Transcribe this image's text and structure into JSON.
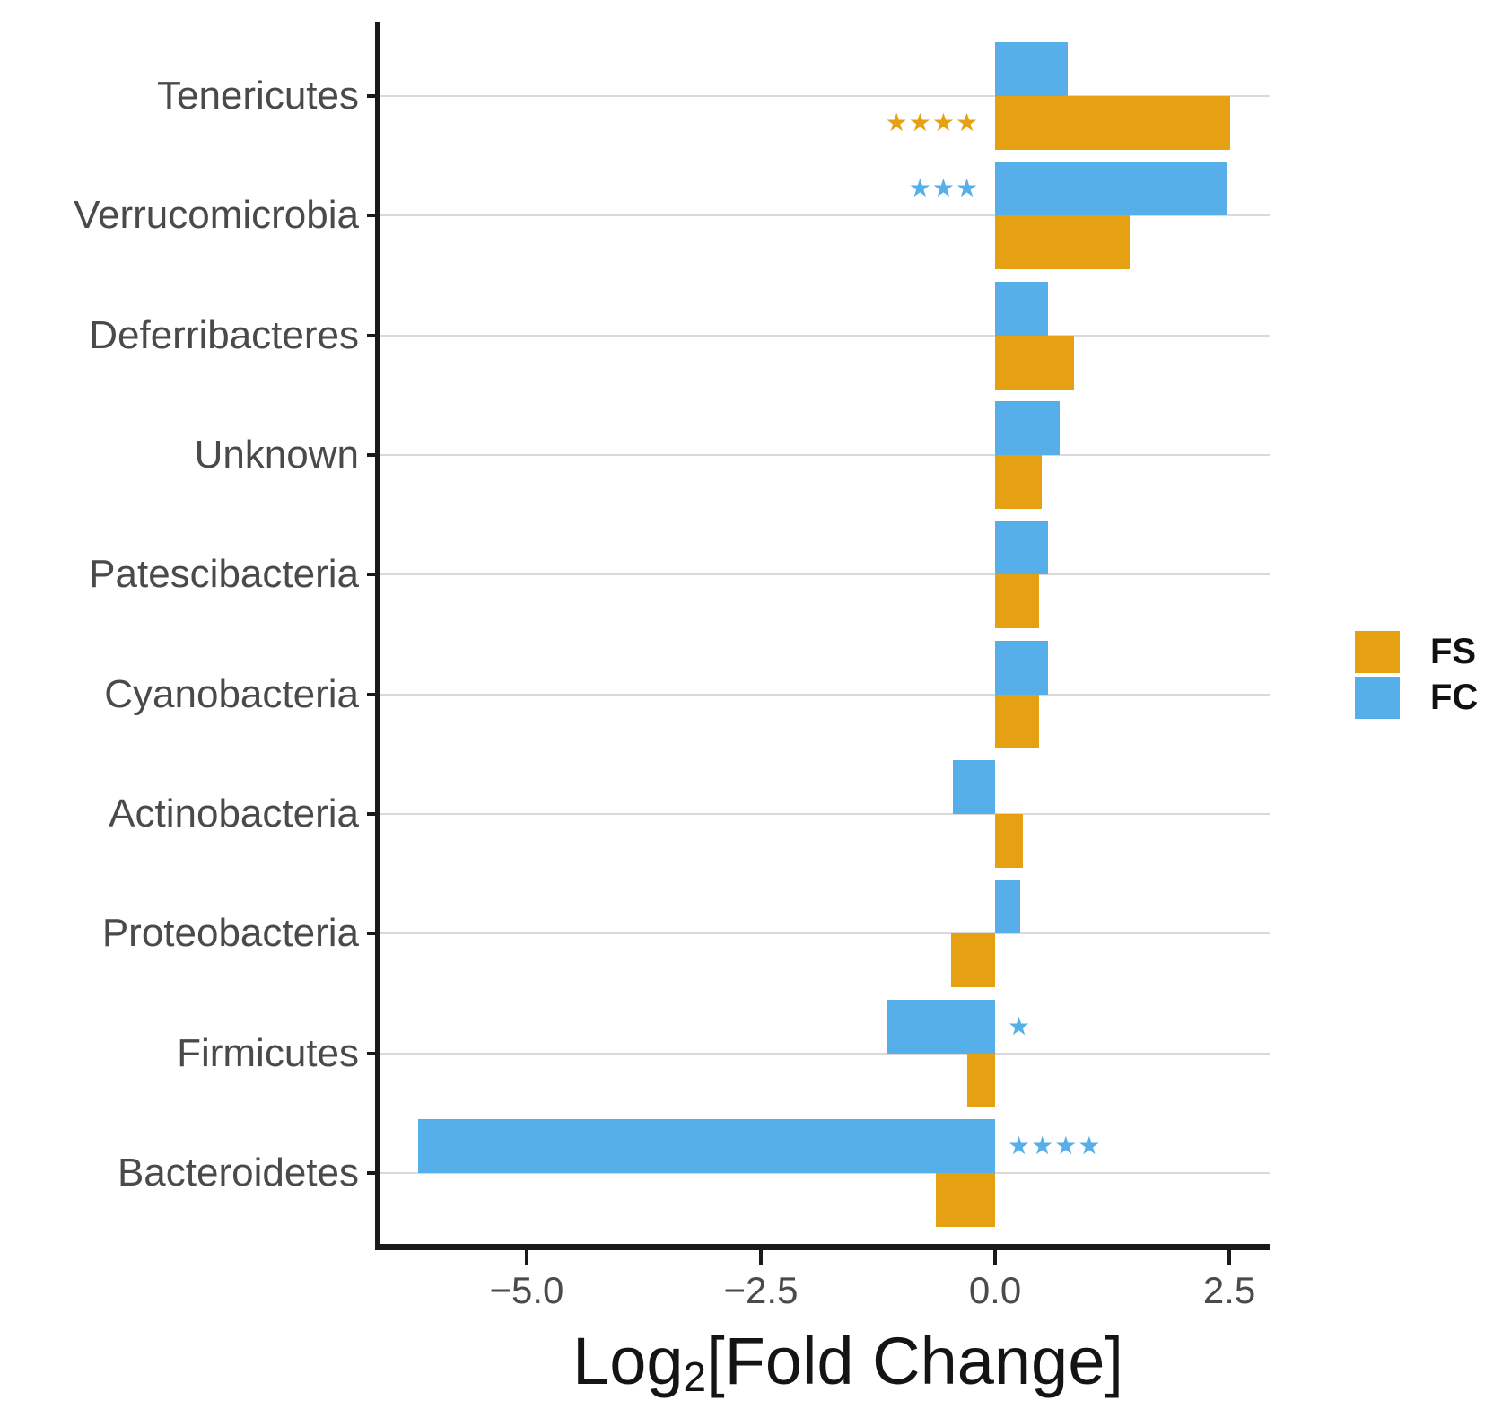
{
  "figure": {
    "background": "#ffffff"
  },
  "chart_data": {
    "type": "bar",
    "orientation": "horizontal",
    "title": "",
    "xlabel_parts": {
      "prefix": "Log",
      "sub": "2",
      "suffix": "[Fold Change]"
    },
    "xlabel_plain": "Log2[Fold Change]",
    "categories": [
      "Tenericutes",
      "Verrucomicrobia",
      "Deferribacteres",
      "Unknown",
      "Patescibacteria",
      "Cyanobacteria",
      "Actinobacteria",
      "Proteobacteria",
      "Firmicutes",
      "Bacteroidetes"
    ],
    "series": [
      {
        "name": "FS",
        "color": "#E6A112",
        "position": "below",
        "values": [
          2.51,
          1.44,
          0.84,
          0.5,
          0.47,
          0.47,
          0.3,
          -0.47,
          -0.3,
          -0.63
        ]
      },
      {
        "name": "FC",
        "color": "#56AFE8",
        "position": "above",
        "values": [
          0.78,
          2.48,
          0.56,
          0.69,
          0.56,
          0.56,
          -0.45,
          0.27,
          -1.15,
          -6.16
        ]
      }
    ],
    "significance": [
      {
        "category": "Tenericutes",
        "series": "FS",
        "stars": 4,
        "side": "left"
      },
      {
        "category": "Verrucomicrobia",
        "series": "FC",
        "stars": 3,
        "side": "left"
      },
      {
        "category": "Firmicutes",
        "series": "FC",
        "stars": 1,
        "side": "right"
      },
      {
        "category": "Bacteroidetes",
        "series": "FC",
        "stars": 4,
        "side": "right"
      }
    ],
    "x_ticks": [
      -5.0,
      -2.5,
      0.0,
      2.5
    ],
    "x_tick_labels": [
      "−5.0",
      "−2.5",
      "0.0",
      "2.5"
    ],
    "xlim": [
      -6.57,
      2.93
    ],
    "grid": "category-gridlines-on",
    "legend": {
      "position": "right",
      "entries": [
        {
          "label": "FS",
          "color": "#E6A112"
        },
        {
          "label": "FC",
          "color": "#56AFE8"
        }
      ]
    },
    "star_glyph": "★",
    "colors": {
      "grid": "#d9d9d9",
      "axis": "#1a1a1a",
      "tick_text": "#4a4a4a",
      "title_text": "#141414"
    }
  }
}
